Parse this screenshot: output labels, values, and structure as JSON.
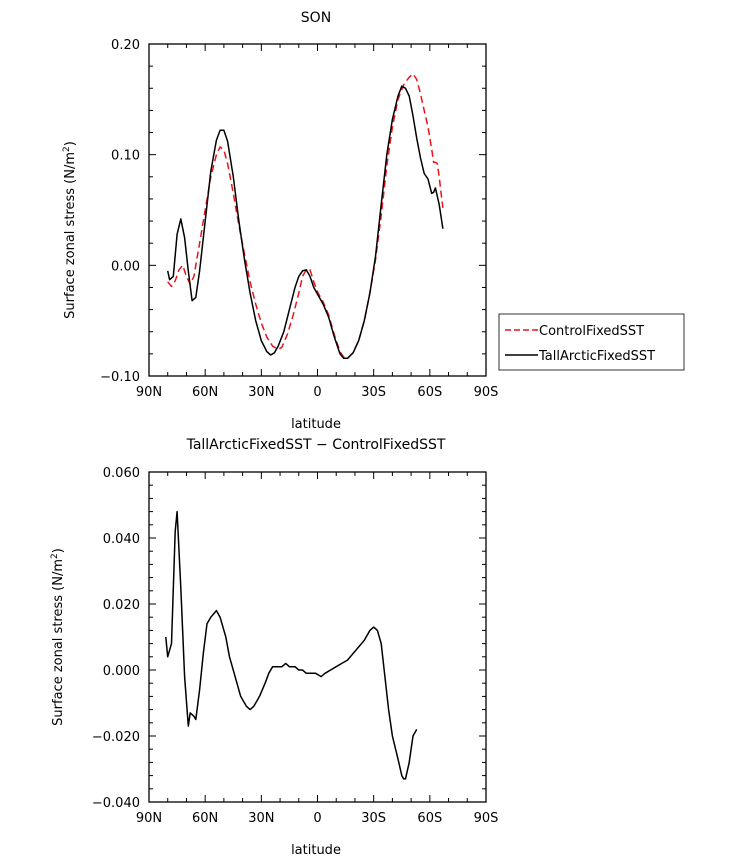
{
  "chart_data": [
    {
      "type": "line",
      "title": "SON",
      "xlabel": "latitude",
      "ylabel": "Surface zonal stress (N/m²)",
      "xlim": [
        90,
        -90
      ],
      "ylim": [
        -0.1,
        0.2
      ],
      "x_ticks": [
        90,
        60,
        30,
        0,
        -30,
        -60,
        -90
      ],
      "x_tick_labels": [
        "90N",
        "60N",
        "30N",
        "0",
        "30S",
        "60S",
        "90S"
      ],
      "y_ticks": [
        -0.1,
        0.0,
        0.1,
        0.2
      ],
      "y_tick_labels": [
        "-0.10",
        "0.00",
        "0.10",
        "0.20"
      ],
      "legend_position": "right",
      "series": [
        {
          "name": "ControlFixedSST",
          "color": "#e8141c",
          "dash": "dashed",
          "points": [
            [
              80,
              -0.015
            ],
            [
              78,
              -0.019
            ],
            [
              76,
              -0.014
            ],
            [
              74,
              -0.004
            ],
            [
              72,
              0.0
            ],
            [
              70,
              -0.01
            ],
            [
              68,
              -0.017
            ],
            [
              66,
              -0.01
            ],
            [
              63,
              0.02
            ],
            [
              60,
              0.05
            ],
            [
              57,
              0.08
            ],
            [
              54,
              0.1
            ],
            [
              52,
              0.107
            ],
            [
              50,
              0.104
            ],
            [
              48,
              0.092
            ],
            [
              45,
              0.065
            ],
            [
              42,
              0.036
            ],
            [
              39,
              0.01
            ],
            [
              36,
              -0.015
            ],
            [
              33,
              -0.035
            ],
            [
              30,
              -0.052
            ],
            [
              27,
              -0.065
            ],
            [
              24,
              -0.073
            ],
            [
              21,
              -0.076
            ],
            [
              19,
              -0.074
            ],
            [
              16,
              -0.062
            ],
            [
              13,
              -0.045
            ],
            [
              10,
              -0.025
            ],
            [
              8,
              -0.01
            ],
            [
              6,
              -0.004
            ],
            [
              4,
              -0.004
            ],
            [
              2,
              -0.015
            ],
            [
              0,
              -0.024
            ],
            [
              -3,
              -0.033
            ],
            [
              -6,
              -0.045
            ],
            [
              -9,
              -0.063
            ],
            [
              -12,
              -0.078
            ],
            [
              -14,
              -0.083
            ],
            [
              -16,
              -0.084
            ],
            [
              -19,
              -0.079
            ],
            [
              -22,
              -0.068
            ],
            [
              -25,
              -0.05
            ],
            [
              -28,
              -0.025
            ],
            [
              -31,
              0.005
            ],
            [
              -34,
              0.045
            ],
            [
              -37,
              0.09
            ],
            [
              -40,
              0.125
            ],
            [
              -43,
              0.15
            ],
            [
              -46,
              0.163
            ],
            [
              -49,
              0.17
            ],
            [
              -51,
              0.173
            ],
            [
              -53,
              0.168
            ],
            [
              -55,
              0.155
            ],
            [
              -57,
              0.14
            ],
            [
              -59,
              0.125
            ],
            [
              -61,
              0.105
            ],
            [
              -62,
              0.093
            ],
            [
              -63,
              0.093
            ],
            [
              -64,
              0.092
            ],
            [
              -65,
              0.08
            ],
            [
              -66,
              0.065
            ],
            [
              -67,
              0.052
            ]
          ]
        },
        {
          "name": "TallArcticFixedSST",
          "color": "#000000",
          "dash": "solid",
          "points": [
            [
              80,
              -0.005
            ],
            [
              79,
              -0.013
            ],
            [
              77,
              -0.01
            ],
            [
              75,
              0.028
            ],
            [
              73,
              0.042
            ],
            [
              71,
              0.025
            ],
            [
              69,
              -0.005
            ],
            [
              67,
              -0.032
            ],
            [
              65,
              -0.029
            ],
            [
              63,
              -0.005
            ],
            [
              60,
              0.04
            ],
            [
              57,
              0.085
            ],
            [
              54,
              0.113
            ],
            [
              52,
              0.122
            ],
            [
              50,
              0.122
            ],
            [
              48,
              0.112
            ],
            [
              45,
              0.08
            ],
            [
              42,
              0.04
            ],
            [
              39,
              0.005
            ],
            [
              36,
              -0.025
            ],
            [
              33,
              -0.05
            ],
            [
              30,
              -0.068
            ],
            [
              27,
              -0.078
            ],
            [
              25,
              -0.081
            ],
            [
              23,
              -0.079
            ],
            [
              21,
              -0.073
            ],
            [
              18,
              -0.06
            ],
            [
              15,
              -0.04
            ],
            [
              12,
              -0.02
            ],
            [
              10,
              -0.01
            ],
            [
              8,
              -0.005
            ],
            [
              6,
              -0.004
            ],
            [
              4,
              -0.01
            ],
            [
              2,
              -0.02
            ],
            [
              0,
              -0.026
            ],
            [
              -3,
              -0.035
            ],
            [
              -6,
              -0.047
            ],
            [
              -9,
              -0.065
            ],
            [
              -12,
              -0.08
            ],
            [
              -14,
              -0.084
            ],
            [
              -16,
              -0.084
            ],
            [
              -19,
              -0.079
            ],
            [
              -22,
              -0.068
            ],
            [
              -25,
              -0.05
            ],
            [
              -28,
              -0.025
            ],
            [
              -31,
              0.008
            ],
            [
              -34,
              0.055
            ],
            [
              -37,
              0.1
            ],
            [
              -40,
              0.132
            ],
            [
              -43,
              0.153
            ],
            [
              -45,
              0.162
            ],
            [
              -47,
              0.16
            ],
            [
              -49,
              0.153
            ],
            [
              -51,
              0.135
            ],
            [
              -53,
              0.115
            ],
            [
              -55,
              0.097
            ],
            [
              -57,
              0.083
            ],
            [
              -59,
              0.078
            ],
            [
              -61,
              0.065
            ],
            [
              -62,
              0.066
            ],
            [
              -63,
              0.07
            ],
            [
              -65,
              0.055
            ],
            [
              -67,
              0.033
            ]
          ]
        }
      ]
    },
    {
      "type": "line",
      "title": "TallArcticFixedSST − ControlFixedSST",
      "xlabel": "latitude",
      "ylabel": "Surface zonal stress (N/m²)",
      "xlim": [
        90,
        -90
      ],
      "ylim": [
        -0.04,
        0.06
      ],
      "x_ticks": [
        90,
        60,
        30,
        0,
        -30,
        -60,
        -90
      ],
      "x_tick_labels": [
        "90N",
        "60N",
        "30N",
        "0",
        "30S",
        "60S",
        "90S"
      ],
      "y_ticks": [
        -0.04,
        -0.02,
        0.0,
        0.02,
        0.04,
        0.06
      ],
      "y_tick_labels": [
        "-0.040",
        "-0.020",
        "0.000",
        "0.020",
        "0.040",
        "0.060"
      ],
      "series": [
        {
          "color": "#000000",
          "dash": "solid",
          "points": [
            [
              81,
              0.01
            ],
            [
              80,
              0.004
            ],
            [
              78,
              0.008
            ],
            [
              76,
              0.042
            ],
            [
              75,
              0.048
            ],
            [
              73,
              0.025
            ],
            [
              71,
              -0.002
            ],
            [
              69,
              -0.017
            ],
            [
              68,
              -0.013
            ],
            [
              66,
              -0.014
            ],
            [
              65,
              -0.015
            ],
            [
              63,
              -0.006
            ],
            [
              61,
              0.005
            ],
            [
              59,
              0.014
            ],
            [
              57,
              0.016
            ],
            [
              54,
              0.018
            ],
            [
              52,
              0.016
            ],
            [
              49,
              0.01
            ],
            [
              47,
              0.004
            ],
            [
              44,
              -0.002
            ],
            [
              41,
              -0.008
            ],
            [
              38,
              -0.011
            ],
            [
              36,
              -0.012
            ],
            [
              34,
              -0.011
            ],
            [
              31,
              -0.008
            ],
            [
              28,
              -0.004
            ],
            [
              26,
              -0.001
            ],
            [
              24,
              0.001
            ],
            [
              21,
              0.001
            ],
            [
              19,
              0.001
            ],
            [
              17,
              0.002
            ],
            [
              15,
              0.001
            ],
            [
              12,
              0.001
            ],
            [
              10,
              0.0
            ],
            [
              8,
              0.0
            ],
            [
              6,
              -0.001
            ],
            [
              3,
              -0.001
            ],
            [
              1,
              -0.001
            ],
            [
              -2,
              -0.002
            ],
            [
              -4,
              -0.001
            ],
            [
              -7,
              0.0
            ],
            [
              -10,
              0.001
            ],
            [
              -13,
              0.002
            ],
            [
              -16,
              0.003
            ],
            [
              -19,
              0.005
            ],
            [
              -22,
              0.007
            ],
            [
              -25,
              0.009
            ],
            [
              -28,
              0.012
            ],
            [
              -30,
              0.013
            ],
            [
              -32,
              0.012
            ],
            [
              -34,
              0.008
            ],
            [
              -36,
              -0.002
            ],
            [
              -38,
              -0.012
            ],
            [
              -40,
              -0.02
            ],
            [
              -43,
              -0.027
            ],
            [
              -45,
              -0.032
            ],
            [
              -46,
              -0.033
            ],
            [
              -47,
              -0.033
            ],
            [
              -49,
              -0.028
            ],
            [
              -51,
              -0.02
            ],
            [
              -53,
              -0.018
            ]
          ]
        }
      ]
    }
  ]
}
